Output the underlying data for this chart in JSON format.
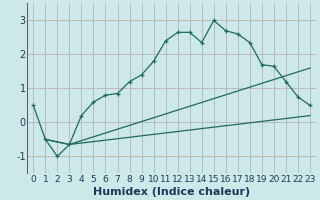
{
  "xlabel": "Humidex (Indice chaleur)",
  "xlim": [
    -0.5,
    23.5
  ],
  "ylim": [
    -1.5,
    3.5
  ],
  "yticks": [
    -1,
    0,
    1,
    2,
    3
  ],
  "xticks": [
    0,
    1,
    2,
    3,
    4,
    5,
    6,
    7,
    8,
    9,
    10,
    11,
    12,
    13,
    14,
    15,
    16,
    17,
    18,
    19,
    20,
    21,
    22,
    23
  ],
  "bg_color": "#cce8e8",
  "grid_color": "#b8a8a8",
  "line_color": "#1e6b5a",
  "curve1_x": [
    0,
    1,
    2,
    3,
    4,
    5,
    6,
    7,
    8,
    9,
    10,
    11,
    12,
    13,
    14,
    15,
    16,
    17,
    18,
    19,
    20,
    21,
    22,
    23
  ],
  "curve1_y": [
    0.5,
    -0.5,
    -1.0,
    -0.65,
    0.2,
    0.6,
    0.8,
    0.85,
    1.2,
    1.4,
    1.8,
    2.4,
    2.65,
    2.65,
    2.35,
    3.0,
    2.7,
    2.6,
    2.35,
    1.7,
    1.65,
    1.2,
    0.75,
    0.5
  ],
  "curve2_x": [
    1,
    3,
    23
  ],
  "curve2_y": [
    -0.5,
    -0.65,
    1.6
  ],
  "curve3_x": [
    1,
    3,
    23
  ],
  "curve3_y": [
    -0.5,
    -0.65,
    0.2
  ],
  "font_color": "#1a3a5a",
  "xlabel_fontsize": 8,
  "tick_fontsize": 6.5,
  "linewidth": 0.9,
  "markersize": 3.5
}
